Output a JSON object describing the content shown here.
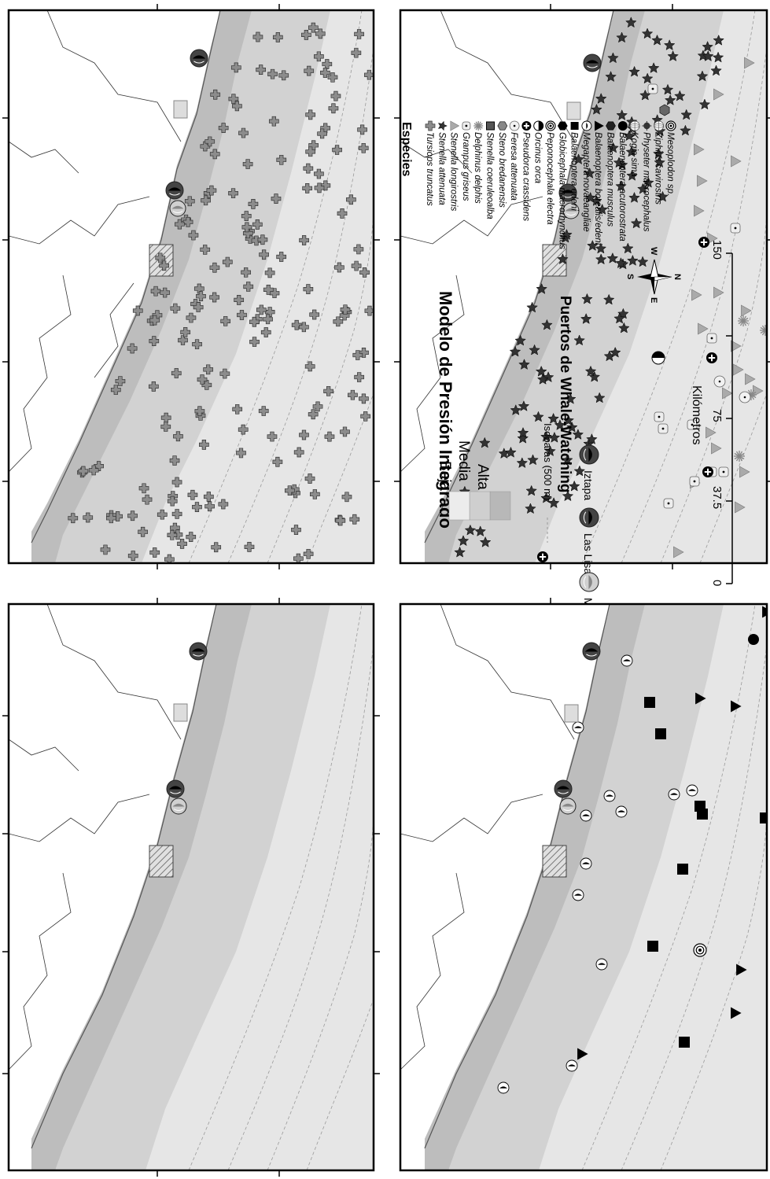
{
  "legend": {
    "title": "Modelo de Presión Integrado",
    "pressure_levels": [
      "Alta",
      "Media",
      "Baja"
    ],
    "isobaras_label": "Isobaras (500 m)",
    "ports_title": "Puertos de Whale-Watching",
    "ports": [
      "Iztapa",
      "Las Lisas",
      "Marina Pez Vela"
    ],
    "species_title": "Especies",
    "species": [
      "Tursiops truncatus",
      "Stenella attenuata",
      "Stenella longirostris",
      "Grampus griseus",
      "Delphinus delphis",
      "Stenella coeruleoalba",
      "Steno bredanensis",
      "Feresa attenuata",
      "Pseudorca crassidens",
      "Orcinus orca",
      "Peponocephala electra",
      "Globicephala macrorhynchus",
      "Balaenoptera edeni",
      "Megaptera novaeangliae",
      "Balaenoptera borealis/edeni",
      "Balaenoptera musculus",
      "Balaenoptera acutorostrata",
      "Kogia sima",
      "Physeter macrocephalus",
      "Ziphius cavirostris",
      "Mesoplodon sp."
    ]
  },
  "scale_bar": {
    "ticks": [
      "0",
      "37.5",
      "75",
      "150"
    ],
    "unit": "Kilómetros"
  },
  "north_arrow": {
    "n": "N",
    "s": "S",
    "e": "E",
    "w": "W"
  },
  "colors": {
    "alta": "#b4b4b4",
    "media": "#cdcdcd",
    "baja": "#e8e8e8",
    "tursiops": "#8c8c8c",
    "frame": "#000000"
  }
}
